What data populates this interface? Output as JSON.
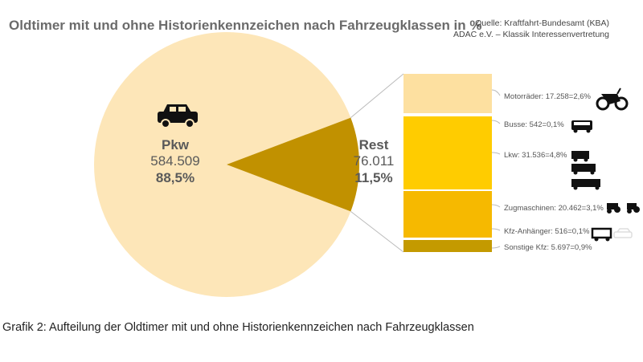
{
  "title": "Oldtimer mit und ohne Historienkennzeichen nach Fahrzeugklassen in %",
  "source_line1": "Quelle: Kraftfahrt-Bundesamt (KBA)",
  "source_line2": "ADAC e.V. – Klassik Interessenvertretung",
  "caption": "Grafik 2: Aufteilung der Oldtimer mit und ohne Historienkennzeichen nach Fahrzeugklassen",
  "chart_data": {
    "type": "pie",
    "slices": [
      {
        "name": "Pkw",
        "value": 584509,
        "value_label": "584.509",
        "percent": 88.5,
        "percent_label": "88,5%",
        "color": "#fde6b8"
      },
      {
        "name": "Rest",
        "value": 76011,
        "value_label": "76.011",
        "percent": 11.5,
        "percent_label": "11,5%",
        "color": "#c19100"
      }
    ],
    "breakdown": {
      "type": "bar",
      "of": "Rest",
      "segments": [
        {
          "name": "Motorräder",
          "value": 17258,
          "percent": 2.6,
          "label": "Motorräder: 17.258=2,6%",
          "icon": "motorcycle-icon",
          "color": "#fde0a0"
        },
        {
          "name": "Busse",
          "value": 542,
          "percent": 0.1,
          "label": "Busse: 542=0,1%",
          "icon": "bus-icon",
          "color": "#ffcc00"
        },
        {
          "name": "Lkw",
          "value": 31536,
          "percent": 4.8,
          "label": "Lkw: 31.536=4,8%",
          "icon": "truck-icon",
          "color": "#ffcc00"
        },
        {
          "name": "Zugmaschinen",
          "value": 20462,
          "percent": 3.1,
          "label": "Zugmaschinen: 20.462=3,1%",
          "icon": "tractor-icon",
          "color": "#f6b900"
        },
        {
          "name": "Kfz-Anhänger",
          "value": 516,
          "percent": 0.1,
          "label": "Kfz-Anhänger: 516=0,1%",
          "icon": "trailer-icon",
          "color": "#f6b900"
        },
        {
          "name": "Sonstige Kfz",
          "value": 5697,
          "percent": 0.9,
          "label": "Sonstige Kfz: 5.697=0,9%",
          "icon": "",
          "color": "#c49a00"
        }
      ]
    }
  }
}
